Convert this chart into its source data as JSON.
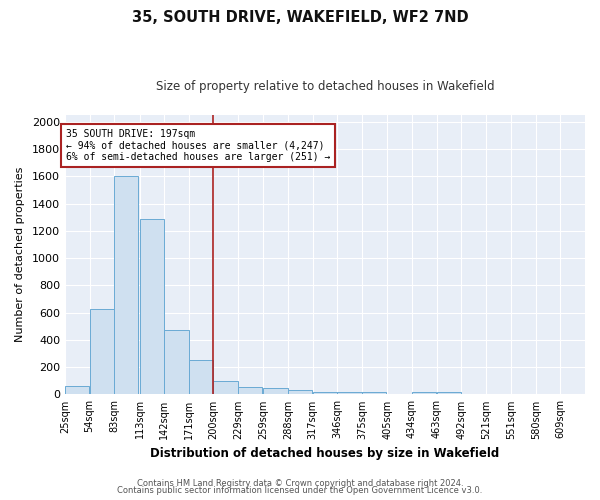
{
  "title": "35, SOUTH DRIVE, WAKEFIELD, WF2 7ND",
  "subtitle": "Size of property relative to detached houses in Wakefield",
  "xlabel": "Distribution of detached houses by size in Wakefield",
  "ylabel": "Number of detached properties",
  "bar_labels": [
    "25sqm",
    "54sqm",
    "83sqm",
    "113sqm",
    "142sqm",
    "171sqm",
    "200sqm",
    "229sqm",
    "259sqm",
    "288sqm",
    "317sqm",
    "346sqm",
    "375sqm",
    "405sqm",
    "434sqm",
    "463sqm",
    "492sqm",
    "521sqm",
    "551sqm",
    "580sqm",
    "609sqm"
  ],
  "bar_values": [
    65,
    630,
    1600,
    1290,
    475,
    250,
    100,
    55,
    45,
    30,
    20,
    15,
    20,
    0,
    20,
    20,
    0,
    0,
    0,
    0,
    0
  ],
  "bar_color": "#cfe0f0",
  "bar_edgecolor": "#6aaad4",
  "vline_color": "#aa2222",
  "annotation_title": "35 SOUTH DRIVE: 197sqm",
  "annotation_line1": "← 94% of detached houses are smaller (4,247)",
  "annotation_line2": "6% of semi-detached houses are larger (251) →",
  "annotation_box_facecolor": "#ffffff",
  "annotation_box_edgecolor": "#aa2222",
  "ylim": [
    0,
    2050
  ],
  "yticks": [
    0,
    200,
    400,
    600,
    800,
    1000,
    1200,
    1400,
    1600,
    1800,
    2000
  ],
  "footer1": "Contains HM Land Registry data © Crown copyright and database right 2024.",
  "footer2": "Contains public sector information licensed under the Open Government Licence v3.0.",
  "fig_bg_color": "#ffffff",
  "plot_bg_color": "#e8eef7",
  "grid_color": "#ffffff",
  "bin_width": 29
}
